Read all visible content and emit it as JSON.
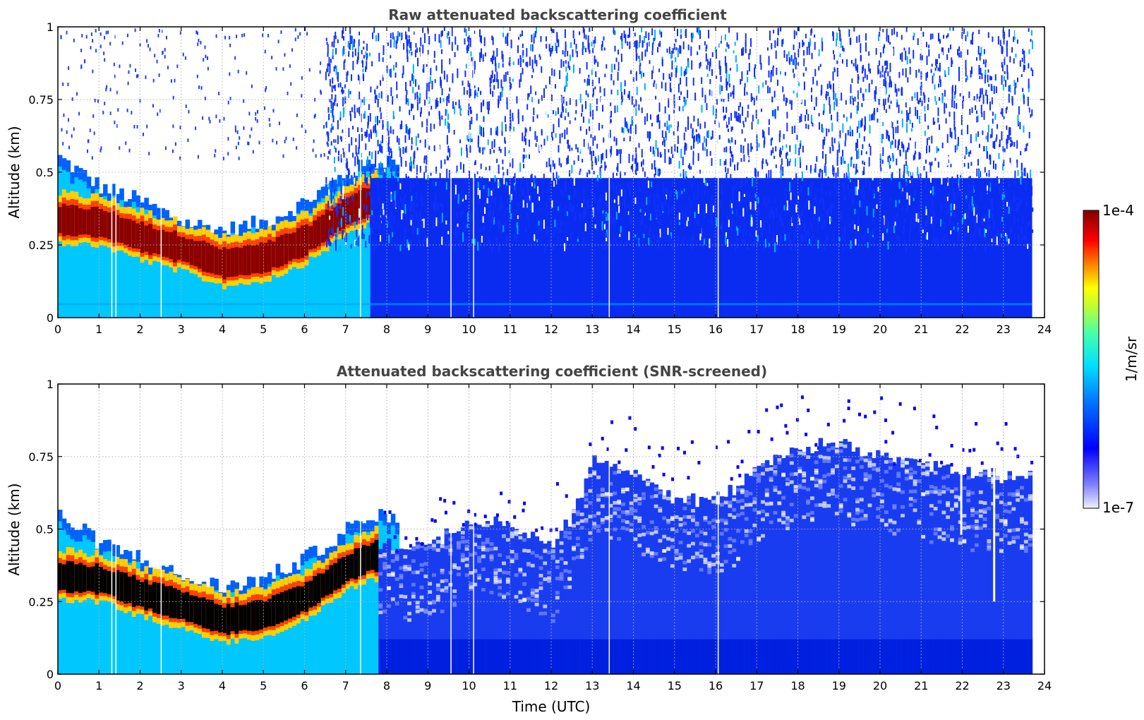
{
  "chart_data": {
    "type": "heatmap",
    "colormap": {
      "label": "1/m/sr",
      "min_label": "1e-7",
      "max_label": "1e-4",
      "scale": "log",
      "colors": [
        "#e8e8ff",
        "#6060ff",
        "#0000ff",
        "#0080ff",
        "#00e0ff",
        "#40ffc0",
        "#c0ff40",
        "#ffff00",
        "#ff8000",
        "#ff0000",
        "#8b0000"
      ]
    },
    "xlabel": "Time (UTC)",
    "xlim": [
      0,
      24
    ],
    "xticks": [
      "0",
      "1",
      "2",
      "3",
      "4",
      "5",
      "6",
      "7",
      "8",
      "9",
      "10",
      "11",
      "12",
      "13",
      "14",
      "15",
      "16",
      "17",
      "18",
      "19",
      "20",
      "21",
      "22",
      "23",
      "24"
    ],
    "panels": [
      {
        "title": "Raw attenuated backscattering coefficient",
        "ylabel": "Altitude (km)",
        "ylim": [
          0,
          1
        ],
        "yticks": [
          "0",
          "0.25",
          "0.5",
          "0.75",
          "1"
        ],
        "data_end_hour": 23.7,
        "layer_top_km": [
          [
            0,
            0.55
          ],
          [
            1,
            0.45
          ],
          [
            2,
            0.4
          ],
          [
            3,
            0.33
          ],
          [
            4,
            0.3
          ],
          [
            5,
            0.33
          ],
          [
            6,
            0.4
          ],
          [
            7,
            0.5
          ],
          [
            8,
            0.55
          ]
        ],
        "layer_core_km": [
          [
            0,
            0.33
          ],
          [
            1,
            0.32
          ],
          [
            2,
            0.27
          ],
          [
            3,
            0.23
          ],
          [
            4,
            0.18
          ],
          [
            5,
            0.2
          ],
          [
            6,
            0.26
          ],
          [
            7,
            0.36
          ],
          [
            7.6,
            0.4
          ]
        ],
        "noise_floor_top_km": 0.48,
        "overlap_artifact_km": 0.05
      },
      {
        "title": "Attenuated backscattering coefficient (SNR-screened)",
        "ylabel": "Altitude (km)",
        "ylim": [
          0,
          1
        ],
        "yticks": [
          "0",
          "0.25",
          "0.5",
          "0.75",
          "1"
        ],
        "data_end_hour": 23.7,
        "layer_top_km": [
          [
            0,
            0.55
          ],
          [
            1,
            0.45
          ],
          [
            2,
            0.4
          ],
          [
            3,
            0.33
          ],
          [
            4,
            0.3
          ],
          [
            5,
            0.33
          ],
          [
            6,
            0.4
          ],
          [
            7,
            0.5
          ],
          [
            8,
            0.55
          ]
        ],
        "screened_top_km": [
          [
            8,
            0.45
          ],
          [
            9,
            0.45
          ],
          [
            10,
            0.52
          ],
          [
            11,
            0.52
          ],
          [
            12,
            0.45
          ],
          [
            12.5,
            0.55
          ],
          [
            13,
            0.75
          ],
          [
            14,
            0.68
          ],
          [
            15,
            0.6
          ],
          [
            16,
            0.6
          ],
          [
            17,
            0.7
          ],
          [
            18,
            0.78
          ],
          [
            19,
            0.8
          ],
          [
            20,
            0.75
          ],
          [
            21,
            0.72
          ],
          [
            22,
            0.7
          ],
          [
            23,
            0.68
          ],
          [
            23.7,
            0.7
          ]
        ],
        "saturated_color": "#000000"
      }
    ]
  }
}
